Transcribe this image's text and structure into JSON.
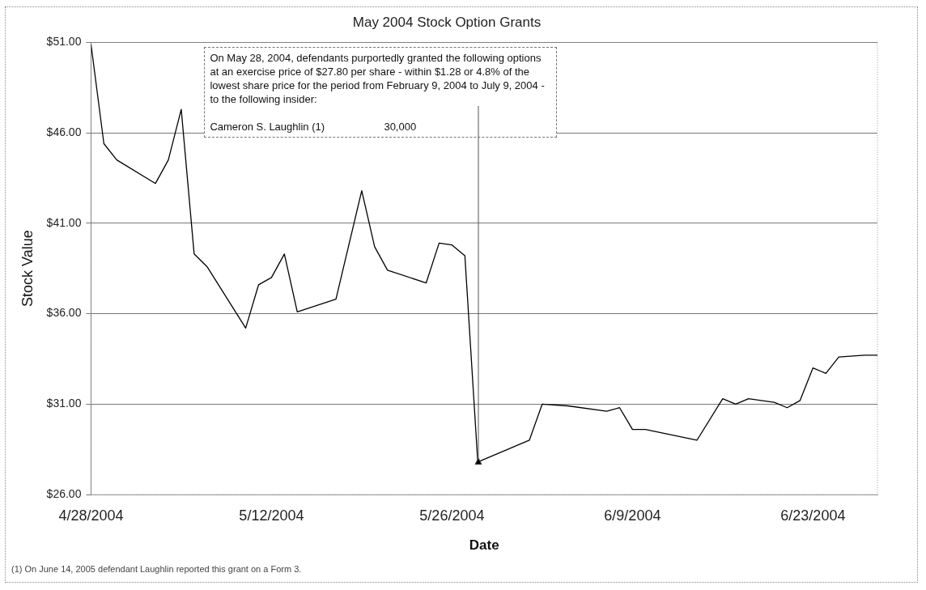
{
  "chart_data": {
    "type": "line",
    "title": "May 2004 Stock Option Grants",
    "xlabel": "Date",
    "ylabel": "Stock Value",
    "series": [
      {
        "color": "#000000",
        "x": [
          "2004-04-28",
          "2004-04-29",
          "2004-04-30",
          "2004-05-03",
          "2004-05-04",
          "2004-05-05",
          "2004-05-06",
          "2004-05-07",
          "2004-05-10",
          "2004-05-11",
          "2004-05-12",
          "2004-05-13",
          "2004-05-14",
          "2004-05-17",
          "2004-05-19",
          "2004-05-20",
          "2004-05-21",
          "2004-05-24",
          "2004-05-25",
          "2004-05-26",
          "2004-05-27",
          "2004-05-28",
          "2004-06-01",
          "2004-06-02",
          "2004-06-04",
          "2004-06-07",
          "2004-06-08",
          "2004-06-09",
          "2004-06-10",
          "2004-06-14",
          "2004-06-16",
          "2004-06-17",
          "2004-06-18",
          "2004-06-20",
          "2004-06-21",
          "2004-06-22",
          "2004-06-23",
          "2004-06-24",
          "2004-06-25",
          "2004-06-27",
          "2004-06-28"
        ],
        "values": [
          50.9,
          45.4,
          44.5,
          43.2,
          44.5,
          47.3,
          39.3,
          38.6,
          35.2,
          37.6,
          38.0,
          39.3,
          36.1,
          36.8,
          42.8,
          39.7,
          38.4,
          37.7,
          39.9,
          39.8,
          39.2,
          27.8,
          29.0,
          31.0,
          30.9,
          30.6,
          30.8,
          29.6,
          29.6,
          29.0,
          31.3,
          31.0,
          31.3,
          31.1,
          30.8,
          31.2,
          33.0,
          32.7,
          33.6,
          33.7,
          33.7
        ]
      }
    ],
    "xlim": [
      "2004-04-28",
      "2004-06-28"
    ],
    "xticks": [
      {
        "value": "2004-04-28",
        "label": "4/28/2004"
      },
      {
        "value": "2004-05-12",
        "label": "5/12/2004"
      },
      {
        "value": "2004-05-26",
        "label": "5/26/2004"
      },
      {
        "value": "2004-06-09",
        "label": "6/9/2004"
      },
      {
        "value": "2004-06-23",
        "label": "6/23/2004"
      }
    ],
    "ylim": [
      26,
      51
    ],
    "yticks": [
      {
        "value": 26,
        "label": "$26.00"
      },
      {
        "value": 31,
        "label": "$31.00"
      },
      {
        "value": 36,
        "label": "$36.00"
      },
      {
        "value": 41,
        "label": "$41.00"
      },
      {
        "value": 46,
        "label": "$46.00"
      },
      {
        "value": 51,
        "label": "$51.00"
      }
    ],
    "grid": "y",
    "legend": false,
    "marker": "none",
    "line_style": "solid",
    "annotations": [
      {
        "text": "On May 28, 2004, defendants purportedly granted the following options at an exercise price of $27.80 per share - within $1.28 or 4.8% of the lowest share price for the period from February 9, 2004 to July 9, 2004 - to the following insider:",
        "x": "2004-05-28",
        "y": 27.8
      },
      "Cameron S. Laughlin (1)",
      "30,000",
      "(1) On June 14, 2005 defendant Laughlin reported this grant on a Form 3."
    ]
  }
}
